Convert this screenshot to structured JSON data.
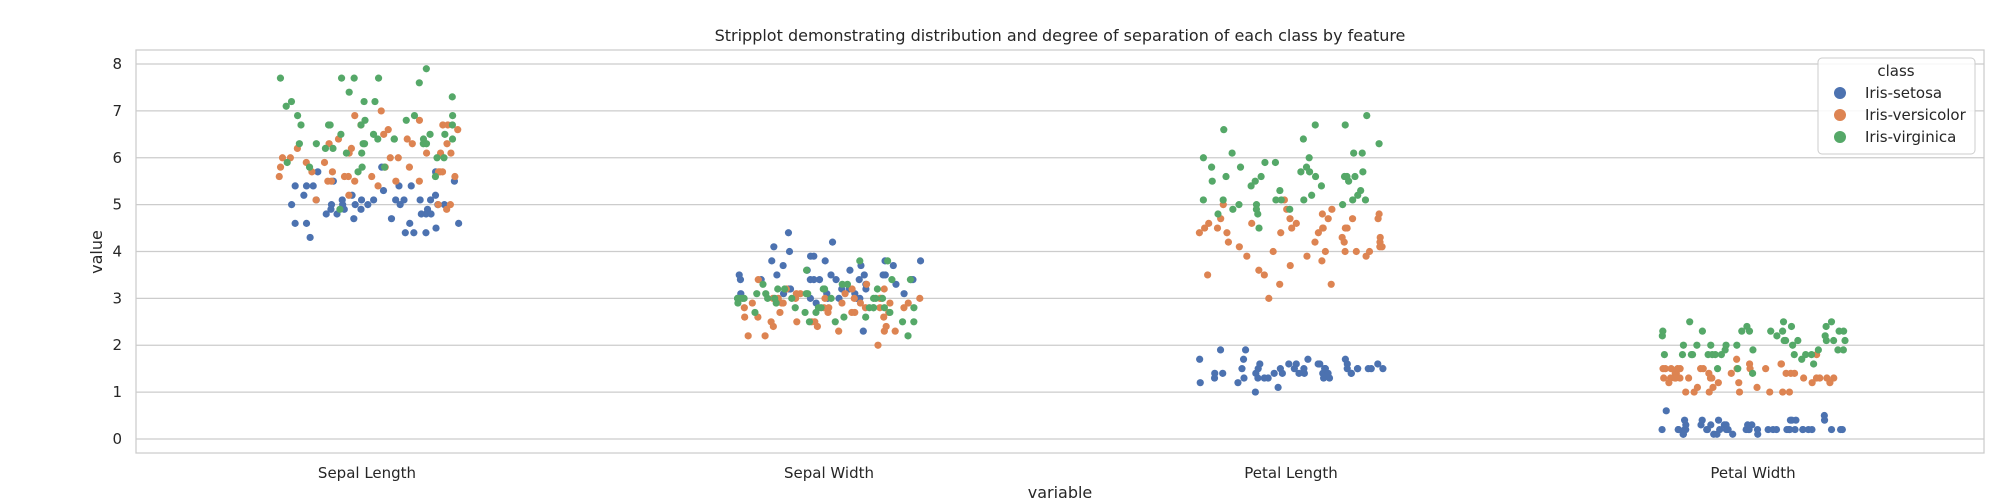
{
  "chart_data": {
    "type": "scatter",
    "title": "Stripplot demonstrating distribution and degree of separation of each class by feature",
    "xlabel": "variable",
    "ylabel": "value",
    "categories": [
      "Sepal Length",
      "Sepal Width",
      "Petal Length",
      "Petal Width"
    ],
    "y_ticks": [
      "0",
      "1",
      "2",
      "3",
      "4",
      "5",
      "6",
      "7",
      "8"
    ],
    "ylim": [
      -0.3,
      8.3
    ],
    "grid": true,
    "legend": {
      "title": "class",
      "position": "top-right"
    },
    "series": [
      {
        "name": "Iris-setosa",
        "color": "#4c72b0",
        "values": [
          [
            5.1,
            4.9,
            4.7,
            4.6,
            5.0,
            5.4,
            4.6,
            5.0,
            4.4,
            4.9,
            5.4,
            4.8,
            4.8,
            4.3,
            5.8,
            5.7,
            5.4,
            5.1,
            5.7,
            5.1,
            5.4,
            5.1,
            4.6,
            5.1,
            4.8,
            5.0,
            5.0,
            5.2,
            5.2,
            4.7,
            4.8,
            5.4,
            5.2,
            5.5,
            4.9,
            5.0,
            5.5,
            4.9,
            4.4,
            5.1,
            5.0,
            4.5,
            4.4,
            5.0,
            5.1,
            4.8,
            5.1,
            4.6,
            5.3,
            5.0
          ],
          [
            3.5,
            3.0,
            3.2,
            3.1,
            3.6,
            3.9,
            3.4,
            3.4,
            2.9,
            3.1,
            3.7,
            3.4,
            3.0,
            3.0,
            4.0,
            4.4,
            3.9,
            3.5,
            3.8,
            3.8,
            3.4,
            3.7,
            3.6,
            3.3,
            3.4,
            3.0,
            3.4,
            3.5,
            3.4,
            3.2,
            3.1,
            3.4,
            4.1,
            4.2,
            3.1,
            3.2,
            3.5,
            3.1,
            3.0,
            3.4,
            3.5,
            2.3,
            3.2,
            3.5,
            3.8,
            3.0,
            3.8,
            3.2,
            3.7,
            3.3
          ],
          [
            1.4,
            1.4,
            1.3,
            1.5,
            1.4,
            1.7,
            1.4,
            1.5,
            1.4,
            1.5,
            1.5,
            1.6,
            1.4,
            1.1,
            1.2,
            1.5,
            1.3,
            1.4,
            1.7,
            1.5,
            1.7,
            1.5,
            1.0,
            1.7,
            1.9,
            1.6,
            1.6,
            1.5,
            1.4,
            1.6,
            1.6,
            1.5,
            1.5,
            1.4,
            1.5,
            1.2,
            1.3,
            1.5,
            1.3,
            1.5,
            1.3,
            1.3,
            1.3,
            1.6,
            1.9,
            1.4,
            1.6,
            1.4,
            1.5,
            1.4
          ],
          [
            0.2,
            0.2,
            0.2,
            0.2,
            0.2,
            0.4,
            0.3,
            0.2,
            0.2,
            0.1,
            0.2,
            0.2,
            0.1,
            0.1,
            0.2,
            0.4,
            0.4,
            0.3,
            0.3,
            0.3,
            0.2,
            0.4,
            0.2,
            0.5,
            0.2,
            0.2,
            0.4,
            0.2,
            0.2,
            0.2,
            0.2,
            0.4,
            0.1,
            0.2,
            0.1,
            0.2,
            0.2,
            0.1,
            0.2,
            0.2,
            0.3,
            0.3,
            0.2,
            0.6,
            0.4,
            0.3,
            0.2,
            0.2,
            0.2,
            0.2
          ]
        ]
      },
      {
        "name": "Iris-versicolor",
        "color": "#dd8452",
        "values": [
          [
            7.0,
            6.4,
            6.9,
            5.5,
            6.5,
            5.7,
            6.3,
            4.9,
            6.6,
            5.2,
            5.0,
            5.9,
            6.0,
            6.1,
            5.6,
            6.7,
            5.6,
            5.8,
            6.2,
            5.6,
            5.9,
            6.1,
            6.3,
            6.1,
            6.4,
            6.6,
            6.8,
            6.7,
            6.0,
            5.7,
            5.5,
            5.5,
            5.8,
            6.0,
            5.4,
            6.0,
            6.7,
            6.3,
            5.6,
            5.5,
            5.5,
            6.1,
            5.8,
            5.0,
            5.6,
            5.7,
            5.7,
            6.2,
            5.1,
            5.7
          ],
          [
            3.2,
            3.2,
            3.1,
            2.3,
            2.8,
            2.8,
            3.3,
            2.4,
            2.9,
            2.7,
            2.0,
            3.0,
            2.2,
            2.9,
            2.9,
            3.1,
            3.0,
            2.7,
            2.2,
            2.5,
            3.2,
            2.8,
            2.5,
            2.8,
            2.9,
            3.0,
            2.8,
            3.0,
            2.9,
            2.6,
            2.4,
            2.4,
            2.7,
            2.7,
            3.0,
            3.4,
            3.1,
            2.3,
            3.0,
            2.5,
            2.6,
            3.0,
            2.6,
            2.3,
            2.7,
            3.0,
            2.9,
            2.9,
            2.5,
            2.8
          ],
          [
            4.7,
            4.5,
            4.9,
            4.0,
            4.6,
            4.5,
            4.7,
            3.3,
            4.6,
            3.9,
            3.5,
            4.2,
            4.0,
            4.7,
            3.6,
            4.4,
            4.5,
            4.1,
            4.5,
            3.9,
            4.8,
            4.0,
            4.9,
            4.7,
            4.3,
            4.4,
            4.8,
            5.0,
            4.5,
            3.5,
            3.8,
            3.7,
            3.9,
            5.1,
            4.5,
            4.5,
            4.7,
            4.4,
            4.1,
            4.0,
            4.4,
            4.6,
            4.0,
            3.3,
            4.2,
            4.2,
            4.2,
            4.3,
            3.0,
            4.1
          ],
          [
            1.4,
            1.5,
            1.5,
            1.3,
            1.5,
            1.3,
            1.6,
            1.0,
            1.3,
            1.4,
            1.0,
            1.5,
            1.0,
            1.4,
            1.3,
            1.4,
            1.5,
            1.0,
            1.5,
            1.1,
            1.8,
            1.3,
            1.5,
            1.2,
            1.3,
            1.4,
            1.4,
            1.7,
            1.5,
            1.0,
            1.1,
            1.0,
            1.2,
            1.6,
            1.5,
            1.6,
            1.5,
            1.3,
            1.3,
            1.3,
            1.2,
            1.4,
            1.2,
            1.0,
            1.3,
            1.2,
            1.3,
            1.3,
            1.1,
            1.3
          ]
        ]
      },
      {
        "name": "Iris-virginica",
        "color": "#55a868",
        "values": [
          [
            6.3,
            5.8,
            7.1,
            6.3,
            6.5,
            7.6,
            4.9,
            7.3,
            6.7,
            7.2,
            6.5,
            6.4,
            6.8,
            5.7,
            5.8,
            6.4,
            6.5,
            7.7,
            7.7,
            6.0,
            6.9,
            5.6,
            7.7,
            6.3,
            6.7,
            7.2,
            6.2,
            6.1,
            6.4,
            7.2,
            7.4,
            7.9,
            6.4,
            6.3,
            6.1,
            7.7,
            6.3,
            6.4,
            6.0,
            6.9,
            6.7,
            6.9,
            5.8,
            6.8,
            6.7,
            6.7,
            6.3,
            6.5,
            6.2,
            5.9
          ],
          [
            3.3,
            2.7,
            3.0,
            2.9,
            3.0,
            3.0,
            2.5,
            2.9,
            2.5,
            3.6,
            3.2,
            2.7,
            3.0,
            2.5,
            2.8,
            3.2,
            3.0,
            3.8,
            2.6,
            2.2,
            3.2,
            2.8,
            2.8,
            2.7,
            3.3,
            3.2,
            2.8,
            3.0,
            2.8,
            3.0,
            2.8,
            3.8,
            2.8,
            2.8,
            2.6,
            3.0,
            3.4,
            3.1,
            3.0,
            3.1,
            3.1,
            3.1,
            2.7,
            3.2,
            3.3,
            3.0,
            2.5,
            3.0,
            3.4,
            3.0
          ],
          [
            6.0,
            5.1,
            5.9,
            5.6,
            5.8,
            6.6,
            4.5,
            6.3,
            5.8,
            6.1,
            5.1,
            5.3,
            5.5,
            5.0,
            5.1,
            5.3,
            5.5,
            6.7,
            6.9,
            5.0,
            5.7,
            4.9,
            6.7,
            4.9,
            5.7,
            6.0,
            4.8,
            4.9,
            5.6,
            5.8,
            6.1,
            6.4,
            5.6,
            5.1,
            5.6,
            6.1,
            5.6,
            5.5,
            4.8,
            5.4,
            5.6,
            5.1,
            5.1,
            5.9,
            5.7,
            5.2,
            5.0,
            5.2,
            5.4,
            5.1
          ],
          [
            2.5,
            1.9,
            2.1,
            1.8,
            2.2,
            2.1,
            1.7,
            1.8,
            1.8,
            2.5,
            2.0,
            1.9,
            2.1,
            2.0,
            2.4,
            2.3,
            1.8,
            2.2,
            2.3,
            1.5,
            2.3,
            2.0,
            2.0,
            1.8,
            2.1,
            1.8,
            1.8,
            1.8,
            2.1,
            1.6,
            1.9,
            2.0,
            2.2,
            1.5,
            1.4,
            2.3,
            2.4,
            1.8,
            1.8,
            2.1,
            2.4,
            2.3,
            1.9,
            2.3,
            2.5,
            2.3,
            1.9,
            2.0,
            2.3,
            1.8
          ]
        ]
      }
    ]
  }
}
